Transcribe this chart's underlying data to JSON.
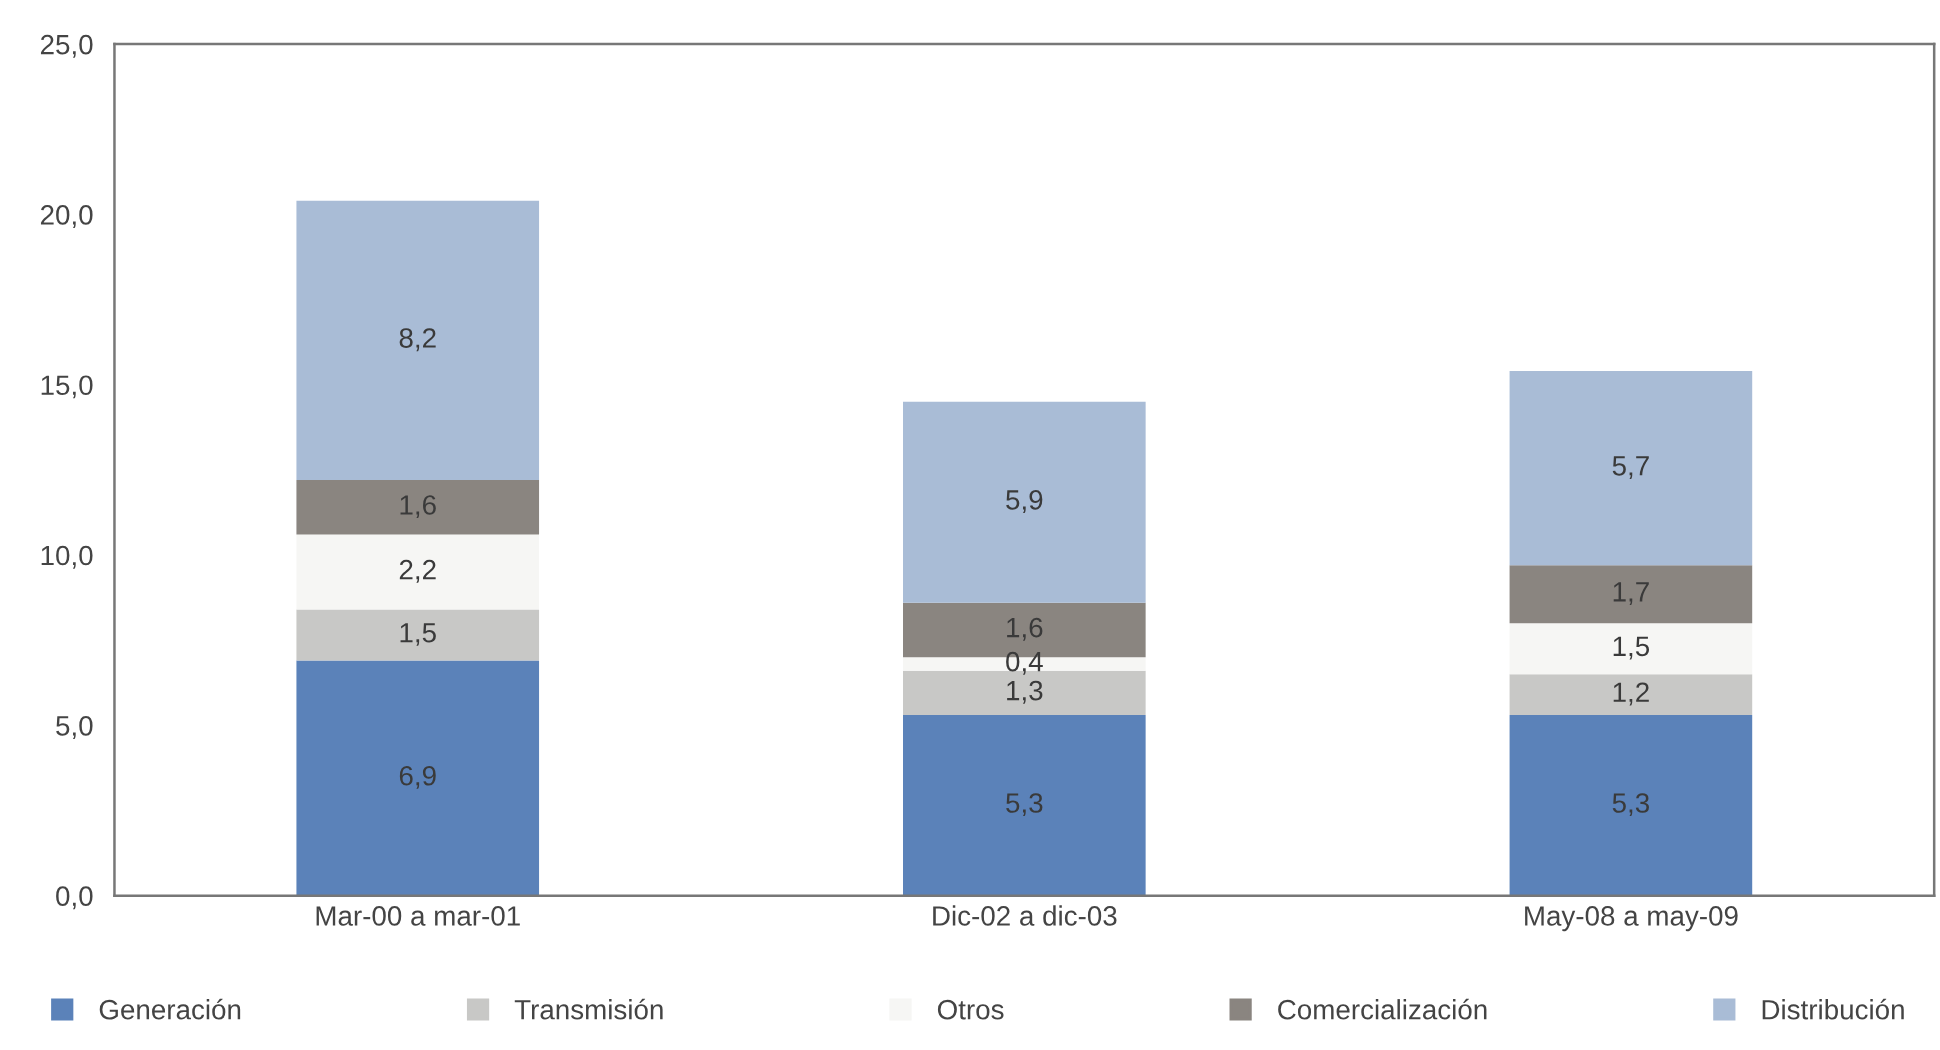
{
  "chart_data": {
    "type": "bar",
    "stacked": true,
    "categories": [
      "Mar-00 a mar-01",
      "Dic-02 a dic-03",
      "May-08 a may-09"
    ],
    "series": [
      {
        "name": "Generación",
        "color": "#5b82b9",
        "values": [
          6.9,
          5.3,
          5.3
        ],
        "value_labels": [
          "6,9",
          "5,3",
          "5,3"
        ]
      },
      {
        "name": "Transmisión",
        "color": "#c8c8c6",
        "values": [
          1.5,
          1.3,
          1.2
        ],
        "value_labels": [
          "1,5",
          "1,3",
          "1,2"
        ]
      },
      {
        "name": "Otros",
        "color": "#f6f6f4",
        "values": [
          2.2,
          0.4,
          1.5
        ],
        "value_labels": [
          "2,2",
          "0,4",
          "1,5"
        ]
      },
      {
        "name": "Comercialización",
        "color": "#8a8580",
        "values": [
          1.6,
          1.6,
          1.7
        ],
        "value_labels": [
          "1,6",
          "1,6",
          "1,7"
        ]
      },
      {
        "name": "Distribución",
        "color": "#a9bcd6",
        "values": [
          8.2,
          5.9,
          5.7
        ],
        "value_labels": [
          "8,2",
          "5,9",
          "5,7"
        ]
      }
    ],
    "ylim": [
      0,
      25
    ],
    "yticks": [
      {
        "value": 0,
        "label": "0,0"
      },
      {
        "value": 5,
        "label": "5,0"
      },
      {
        "value": 10,
        "label": "10,0"
      },
      {
        "value": 15,
        "label": "15,0"
      },
      {
        "value": 20,
        "label": "20,0"
      },
      {
        "value": 25,
        "label": "25,0"
      }
    ],
    "grid": false,
    "legend": "bottom"
  }
}
